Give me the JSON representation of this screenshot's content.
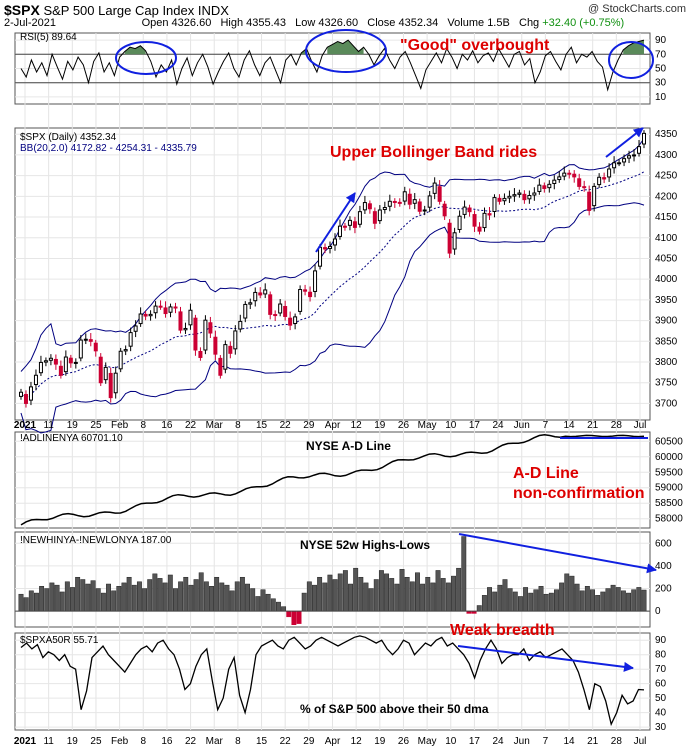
{
  "header": {
    "symbol": "$SPX",
    "name": "S&P 500 Large Cap Index",
    "exchange": "INDX",
    "date": "2-Jul-2021",
    "open_label": "Open",
    "open": "4326.60",
    "high_label": "High",
    "high": "4355.43",
    "low_label": "Low",
    "low": "4326.60",
    "close_label": "Close",
    "close": "4352.34",
    "volume_label": "Volume",
    "volume": "1.5B",
    "chg_label": "Chg",
    "chg": "+32.40 (+0.75%)",
    "brand": "@ StockCharts.com"
  },
  "colors": {
    "up": "#000000",
    "down": "#cc0033",
    "bb": "#000080",
    "rsi_fill": "#5a8a5a",
    "arrow": "#1020e0",
    "annot": "#dd0000"
  },
  "annotations": {
    "rsi": "\"Good\" overbought",
    "price": "Upper Bollinger Band rides",
    "ad_1": "A-D Line",
    "ad_2": "non-confirmation",
    "hl": "Weak breadth"
  },
  "chart_data": [
    {
      "type": "line",
      "legend": "RSI(5) 89.64",
      "yticks": [
        10,
        30,
        50,
        70,
        90
      ],
      "ylim": [
        0,
        100
      ],
      "reference_lines": [
        30,
        70
      ],
      "values": [
        50,
        38,
        62,
        45,
        58,
        40,
        70,
        52,
        35,
        60,
        48,
        66,
        55,
        30,
        60,
        72,
        45,
        58,
        40,
        66,
        74,
        80,
        78,
        82,
        75,
        60,
        38,
        55,
        45,
        62,
        28,
        50,
        65,
        40,
        58,
        70,
        52,
        28,
        45,
        60,
        72,
        50,
        38,
        62,
        75,
        55,
        40,
        58,
        66,
        48,
        30,
        62,
        70,
        55,
        72,
        78,
        60,
        45,
        68,
        80,
        84,
        88,
        85,
        90,
        82,
        74,
        80,
        70,
        55,
        68,
        78,
        62,
        50,
        66,
        74,
        58,
        40,
        22,
        48,
        60,
        72,
        58,
        78,
        66,
        50,
        70,
        62,
        75,
        58,
        68,
        72,
        60,
        78,
        65,
        52,
        70,
        74,
        55,
        64,
        30,
        45,
        68,
        74,
        60,
        48,
        70,
        80,
        58,
        70,
        66,
        74,
        60,
        52,
        20,
        45,
        62,
        76,
        82,
        86,
        88,
        90
      ]
    },
    {
      "type": "candlestick",
      "legend_price": "$SPX (Daily) 4352.34",
      "legend_bb": "BB(20,2.0) 4172.82 - 4254.31 - 4335.79",
      "yticks": [
        3700,
        3750,
        3800,
        3850,
        3900,
        3950,
        4000,
        4050,
        4100,
        4150,
        4200,
        4250,
        4300,
        4350
      ],
      "ylim": [
        3660,
        4365
      ],
      "closes": [
        3727,
        3700,
        3740,
        3768,
        3799,
        3803,
        3809,
        3795,
        3768,
        3812,
        3798,
        3799,
        3853,
        3855,
        3850,
        3827,
        3750,
        3787,
        3714,
        3773,
        3826,
        3830,
        3871,
        3887,
        3916,
        3911,
        3915,
        3935,
        3934,
        3917,
        3933,
        3932,
        3877,
        3881,
        3925,
        3829,
        3811,
        3901,
        3870,
        3819,
        3768,
        3842,
        3821,
        3875,
        3898,
        3939,
        3943,
        3968,
        3962,
        3974,
        3915,
        3913,
        3940,
        3910,
        3889,
        3909,
        3975,
        3971,
        3958,
        4020,
        4077,
        4073,
        4079,
        4097,
        4128,
        4127,
        4142,
        4125,
        4163,
        4185,
        4170,
        4135,
        4167,
        4173,
        4188,
        4186,
        4183,
        4211,
        4181,
        4192,
        4164,
        4167,
        4201,
        4232,
        4188,
        4153,
        4063,
        4112,
        4152,
        4174,
        4163,
        4128,
        4116,
        4159,
        4155,
        4197,
        4188,
        4195,
        4200,
        4204,
        4208,
        4192,
        4202,
        4208,
        4227,
        4219,
        4229,
        4239,
        4247,
        4256,
        4255,
        4247,
        4224,
        4221,
        4166,
        4224,
        4246,
        4242,
        4266,
        4281,
        4281,
        4291,
        4298,
        4300,
        4320,
        4352
      ],
      "bb_mid_start": 3690,
      "bb_mid_end": 4254,
      "bb_upper_end": 4336,
      "bb_lower_end": 4173,
      "x_labels": [
        "2021",
        "11",
        "19",
        "25",
        "Feb",
        "8",
        "16",
        "22",
        "Mar",
        "8",
        "15",
        "22",
        "29",
        "Apr",
        "12",
        "19",
        "26",
        "May",
        "10",
        "17",
        "24",
        "Jun",
        "7",
        "14",
        "21",
        "28",
        "Jul"
      ]
    },
    {
      "type": "line",
      "legend": "!ADLINENYA 60701.10",
      "title": "NYSE A-D Line",
      "yticks": [
        58000,
        58500,
        59000,
        59500,
        60000,
        60500
      ],
      "ylim": [
        57700,
        60800
      ],
      "start": 57800,
      "end": 60701
    },
    {
      "type": "bar",
      "legend": "!NEWHINYA-!NEWLONYA 187.00",
      "title": "NYSE 52w Highs-Lows",
      "yticks": [
        0,
        200,
        400,
        600
      ],
      "ylim": [
        -140,
        700
      ],
      "values": [
        150,
        120,
        180,
        160,
        220,
        200,
        250,
        230,
        170,
        260,
        210,
        300,
        280,
        240,
        270,
        200,
        160,
        240,
        180,
        220,
        250,
        300,
        230,
        260,
        200,
        280,
        330,
        290,
        250,
        320,
        200,
        260,
        300,
        230,
        280,
        340,
        260,
        220,
        300,
        250,
        230,
        180,
        260,
        300,
        240,
        200,
        130,
        190,
        150,
        110,
        80,
        40,
        -50,
        -120,
        -110,
        160,
        260,
        230,
        300,
        250,
        320,
        280,
        330,
        360,
        240,
        380,
        300,
        250,
        200,
        280,
        360,
        330,
        290,
        240,
        370,
        300,
        260,
        340,
        240,
        300,
        250,
        360,
        290,
        250,
        310,
        380,
        660,
        -20,
        -20,
        50,
        140,
        210,
        170,
        230,
        280,
        200,
        170,
        130,
        210,
        160,
        190,
        220,
        150,
        160,
        190,
        250,
        330,
        310,
        240,
        180,
        220,
        190,
        140,
        170,
        200,
        230,
        210,
        180,
        160,
        190,
        210,
        187
      ]
    },
    {
      "type": "line",
      "legend": "$SPXA50R 55.71",
      "title": "% of S&P 500 above their 50 dma",
      "yticks": [
        30,
        40,
        50,
        60,
        70,
        80,
        90
      ],
      "ylim": [
        28,
        95
      ],
      "values": [
        85,
        88,
        84,
        87,
        78,
        82,
        80,
        76,
        80,
        72,
        70,
        42,
        55,
        78,
        82,
        86,
        80,
        76,
        72,
        68,
        74,
        80,
        84,
        86,
        82,
        88,
        90,
        84,
        80,
        70,
        56,
        60,
        72,
        80,
        84,
        62,
        42,
        50,
        70,
        78,
        52,
        40,
        56,
        80,
        86,
        88,
        90,
        86,
        84,
        90,
        92,
        88,
        84,
        86,
        90,
        92,
        90,
        88,
        86,
        88,
        90,
        92,
        93,
        92,
        90,
        88,
        90,
        84,
        80,
        84,
        90,
        88,
        80,
        84,
        88,
        86,
        90,
        92,
        86,
        88,
        84,
        80,
        74,
        64,
        76,
        84,
        90,
        84,
        74,
        78,
        80,
        80,
        84,
        76,
        80,
        82,
        78,
        80,
        82,
        84,
        80,
        76,
        68,
        56,
        42,
        60,
        58,
        48,
        32,
        40,
        52,
        46,
        48,
        56,
        55.71
      ]
    }
  ]
}
